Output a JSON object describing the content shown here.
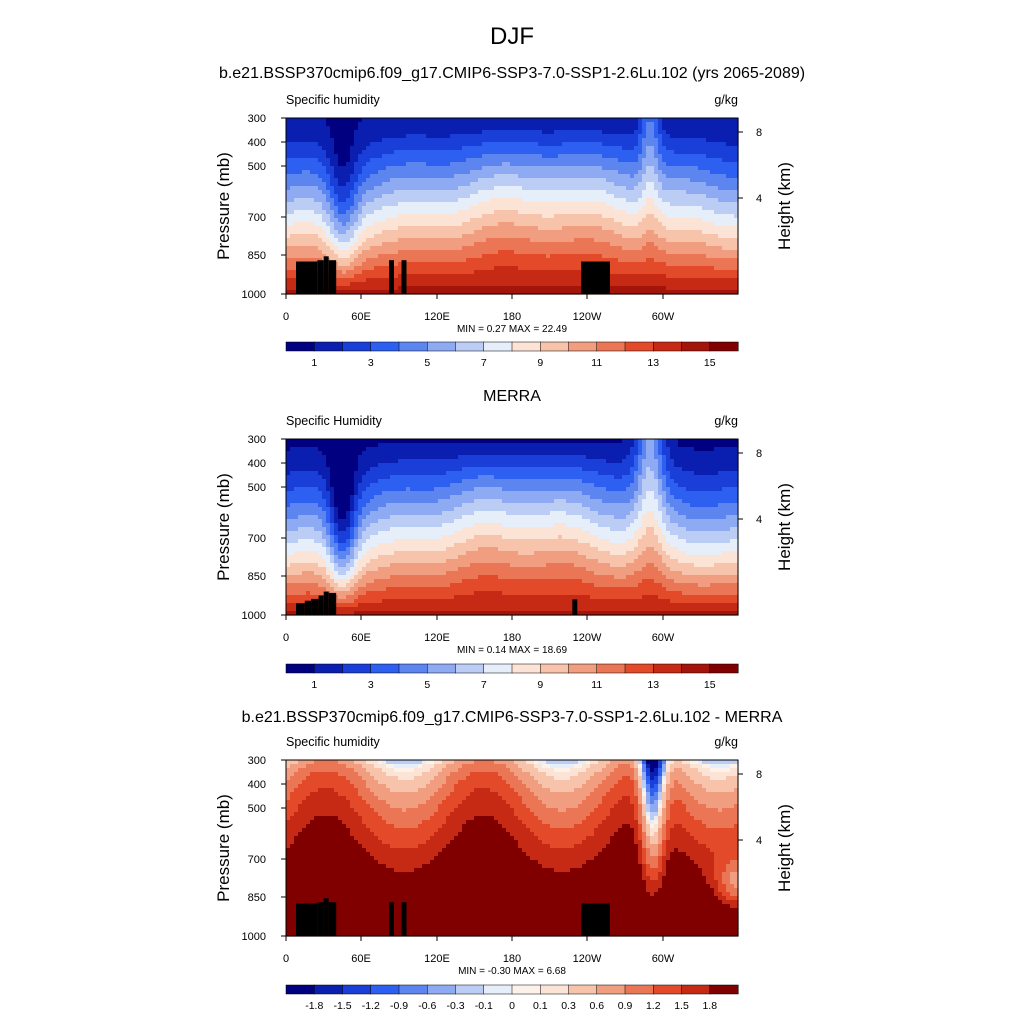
{
  "page": {
    "title": "DJF",
    "x_tick_labels": [
      "0",
      "60E",
      "120E",
      "180",
      "120W",
      "60W"
    ],
    "y_tick_labels": [
      "300",
      "400",
      "500",
      "700",
      "850",
      "1000"
    ],
    "right_tick_labels": [
      "8",
      "4"
    ],
    "left_axis_label": "Pressure (mb)",
    "right_axis_label": "Height (km)"
  },
  "colors": {
    "abs_scale": [
      "#000080",
      "#0a1fb0",
      "#1a3fd8",
      "#2d5ff0",
      "#5d85f0",
      "#8eaaf2",
      "#bccdf5",
      "#e6eefa",
      "#fbe3d6",
      "#f7c3aa",
      "#f19e80",
      "#ea7656",
      "#e24a2a",
      "#c72a14",
      "#a3150a",
      "#800000"
    ],
    "diff_scale": [
      "#000080",
      "#0a1fb0",
      "#1a3fd8",
      "#2d5ff0",
      "#5d85f0",
      "#8eaaf2",
      "#bccdf5",
      "#e6eefa",
      "#fdf2ea",
      "#fbe3d6",
      "#f7c3aa",
      "#f19e80",
      "#ea7656",
      "#e24a2a",
      "#c72a14",
      "#800000"
    ]
  },
  "panels": [
    {
      "id": "model",
      "panel_title": "b.e21.BSSP370cmip6.f09_g17.CMIP6-SSP3-7.0-SSP1-2.6Lu.102 (yrs 2065-2089)",
      "left_label": "Specific humidity",
      "units": "g/kg",
      "stats": "MIN =   0.27  MAX =  22.49",
      "colorbar_labels": [
        "1",
        "3",
        "5",
        "7",
        "9",
        "11",
        "13",
        "15"
      ]
    },
    {
      "id": "merra",
      "panel_title": "MERRA",
      "left_label": "Specific Humidity",
      "units": "g/kg",
      "stats": "MIN =   0.14  MAX =  18.69",
      "colorbar_labels": [
        "1",
        "3",
        "5",
        "7",
        "9",
        "11",
        "13",
        "15"
      ]
    },
    {
      "id": "diff",
      "panel_title": "b.e21.BSSP370cmip6.f09_g17.CMIP6-SSP3-7.0-SSP1-2.6Lu.102 - MERRA",
      "left_label": "Specific humidity",
      "units": "g/kg",
      "stats": "MIN =  -0.30  MAX =   6.68",
      "colorbar_labels": [
        "-1.8",
        "-1.5",
        "-1.2",
        "-0.9",
        "-0.6",
        "-0.3",
        "-0.1",
        "0",
        "0.1",
        "0.3",
        "0.6",
        "0.9",
        "1.2",
        "1.5",
        "1.8"
      ]
    }
  ],
  "chart_data": [
    {
      "type": "heatmap",
      "title": "b.e21.BSSP370cmip6.f09_g17.CMIP6-SSP3-7.0-SSP1-2.6Lu.102 (yrs 2065-2089)",
      "variable": "Specific humidity",
      "units": "g/kg",
      "x": [
        "0",
        "60E",
        "120E",
        "180",
        "120W",
        "60W"
      ],
      "y_pressure_mb": [
        300,
        400,
        500,
        700,
        850,
        1000
      ],
      "y_height_km": [
        8,
        4
      ],
      "levels": [
        1,
        2,
        3,
        4,
        5,
        6,
        7,
        8,
        9,
        10,
        11,
        12,
        13,
        14,
        15
      ],
      "min": 0.27,
      "max": 22.49
    },
    {
      "type": "heatmap",
      "title": "MERRA",
      "variable": "Specific Humidity",
      "units": "g/kg",
      "x": [
        "0",
        "60E",
        "120E",
        "180",
        "120W",
        "60W"
      ],
      "y_pressure_mb": [
        300,
        400,
        500,
        700,
        850,
        1000
      ],
      "y_height_km": [
        8,
        4
      ],
      "levels": [
        1,
        2,
        3,
        4,
        5,
        6,
        7,
        8,
        9,
        10,
        11,
        12,
        13,
        14,
        15
      ],
      "min": 0.14,
      "max": 18.69
    },
    {
      "type": "heatmap",
      "title": "b.e21.BSSP370cmip6.f09_g17.CMIP6-SSP3-7.0-SSP1-2.6Lu.102 - MERRA",
      "variable": "Specific humidity",
      "units": "g/kg",
      "x": [
        "0",
        "60E",
        "120E",
        "180",
        "120W",
        "60W"
      ],
      "y_pressure_mb": [
        300,
        400,
        500,
        700,
        850,
        1000
      ],
      "y_height_km": [
        8,
        4
      ],
      "levels": [
        -1.8,
        -1.5,
        -1.2,
        -0.9,
        -0.6,
        -0.3,
        -0.1,
        0,
        0.1,
        0.3,
        0.6,
        0.9,
        1.2,
        1.5,
        1.8
      ],
      "min": -0.3,
      "max": 6.68
    }
  ]
}
